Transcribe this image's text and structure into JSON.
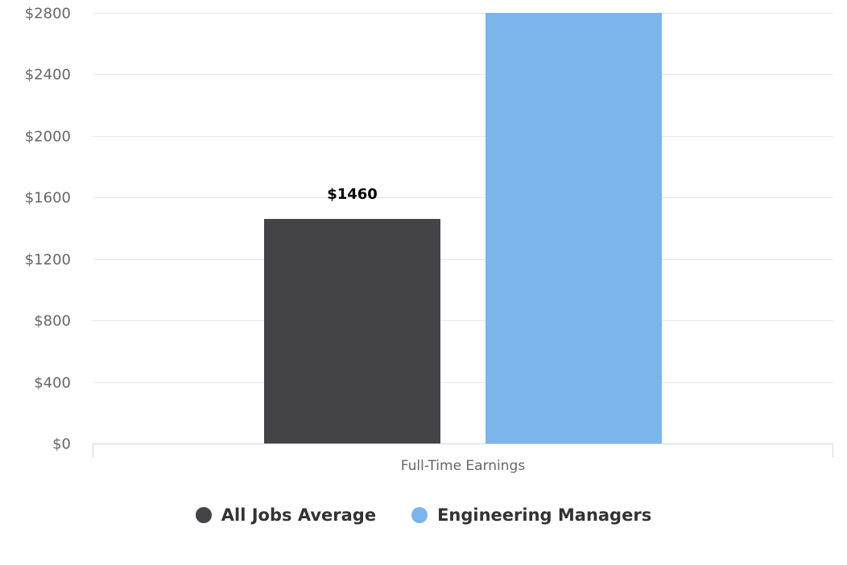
{
  "chart_data": {
    "type": "bar",
    "categories": [
      "Full-Time Earnings"
    ],
    "series": [
      {
        "name": "All Jobs Average",
        "values": [
          1460
        ],
        "color": "#434348",
        "data_label": "$1460"
      },
      {
        "name": "Engineering Managers",
        "values": [
          2800
        ],
        "color": "#7cb5ec"
      }
    ],
    "ylim": [
      0,
      2800
    ],
    "yticks": [
      0,
      400,
      800,
      1200,
      1600,
      2000,
      2400,
      2800
    ],
    "ytick_labels": [
      "$0",
      "$400",
      "$800",
      "$1200",
      "$1600",
      "$2000",
      "$2400",
      "$2800"
    ],
    "grid": true,
    "legend_position": "bottom-center"
  },
  "legend": {
    "items": [
      {
        "label": "All Jobs Average",
        "color": "#434348"
      },
      {
        "label": "Engineering Managers",
        "color": "#7cb5ec"
      }
    ]
  }
}
